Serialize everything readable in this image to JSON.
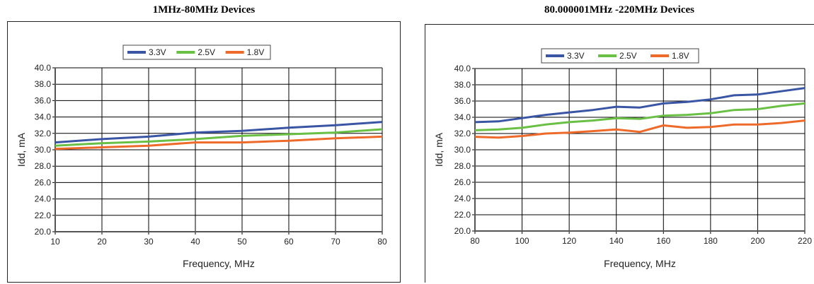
{
  "titles": {
    "left": "1MHz-80MHz Devices",
    "right": "80.000001MHz -220MHz Devices"
  },
  "colors": {
    "v33": "#3a55a4",
    "v25": "#6abf45",
    "v18": "#ee6a2a",
    "grid": "#000000"
  },
  "chart_data": [
    {
      "type": "line",
      "title": "1MHz-80MHz Devices",
      "xlabel": "Frequency, MHz",
      "ylabel": "Idd, mA",
      "xlim": [
        10,
        80
      ],
      "ylim": [
        20,
        40
      ],
      "xticks": [
        "10",
        "20",
        "30",
        "40",
        "50",
        "60",
        "70",
        "80"
      ],
      "yticks": [
        "20.0",
        "22.0",
        "24.0",
        "26.0",
        "28.0",
        "30.0",
        "32.0",
        "34.0",
        "36.0",
        "38.0",
        "40.0"
      ],
      "grid": true,
      "legend_position": "top-center",
      "x": [
        10,
        20,
        30,
        40,
        50,
        60,
        70,
        80
      ],
      "series": [
        {
          "name": "3.3V",
          "color": "#3a55a4",
          "values": [
            30.9,
            31.3,
            31.6,
            32.1,
            32.3,
            32.7,
            33.0,
            33.4
          ]
        },
        {
          "name": "2.5V",
          "color": "#6abf45",
          "values": [
            30.5,
            30.8,
            31.0,
            31.3,
            31.7,
            31.9,
            32.1,
            32.5
          ]
        },
        {
          "name": "1.8V",
          "color": "#ee6a2a",
          "values": [
            30.1,
            30.3,
            30.5,
            30.9,
            30.9,
            31.1,
            31.4,
            31.6
          ]
        }
      ]
    },
    {
      "type": "line",
      "title": "80.000001MHz -220MHz Devices",
      "xlabel": "Frequency, MHz",
      "ylabel": "Idd, mA",
      "xlim": [
        80,
        220
      ],
      "ylim": [
        20,
        40
      ],
      "xticks": [
        "80",
        "100",
        "120",
        "140",
        "160",
        "180",
        "200",
        "220"
      ],
      "yticks": [
        "20.0",
        "22.0",
        "24.0",
        "26.0",
        "28.0",
        "30.0",
        "32.0",
        "34.0",
        "36.0",
        "38.0",
        "40.0"
      ],
      "grid": true,
      "legend_position": "top-center",
      "x": [
        80,
        90,
        100,
        110,
        120,
        130,
        140,
        150,
        160,
        170,
        180,
        190,
        200,
        210,
        220
      ],
      "series": [
        {
          "name": "3.3V",
          "color": "#3a55a4",
          "values": [
            33.4,
            33.5,
            33.9,
            34.3,
            34.6,
            34.9,
            35.3,
            35.2,
            35.7,
            35.9,
            36.2,
            36.7,
            36.8,
            37.2,
            37.6
          ]
        },
        {
          "name": "2.5V",
          "color": "#6abf45",
          "values": [
            32.4,
            32.5,
            32.7,
            33.1,
            33.4,
            33.6,
            33.9,
            33.8,
            34.2,
            34.3,
            34.5,
            34.9,
            35.0,
            35.4,
            35.7
          ]
        },
        {
          "name": "1.8V",
          "color": "#ee6a2a",
          "values": [
            31.6,
            31.5,
            31.7,
            32.0,
            32.1,
            32.3,
            32.5,
            32.2,
            33.0,
            32.7,
            32.8,
            33.1,
            33.1,
            33.3,
            33.6
          ]
        }
      ]
    }
  ]
}
